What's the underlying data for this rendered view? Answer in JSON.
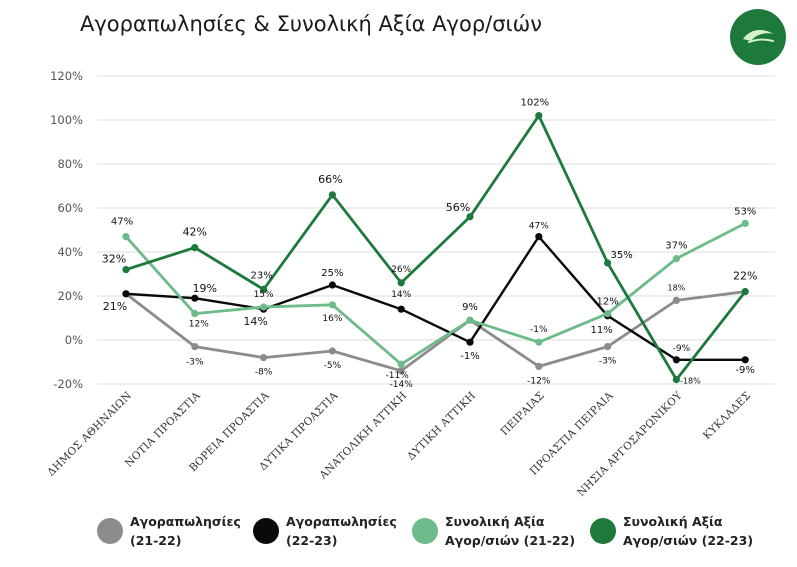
{
  "title": "Αγοραπωλησίες & Συνολική Αξία Αγορ/σιών",
  "logo": {
    "icon": "leaf-logo-icon",
    "color": "#1e7a3c"
  },
  "chart_data": {
    "type": "line",
    "title": "Αγοραπωλησίες & Συνολική Αξία Αγορ/σιών",
    "xlabel": "",
    "ylabel": "",
    "ylim": [
      -20,
      120
    ],
    "yticks": [
      "-20%",
      "0%",
      "20%",
      "40%",
      "60%",
      "80%",
      "100%",
      "120%"
    ],
    "ytick_values": [
      -20,
      0,
      20,
      40,
      60,
      80,
      100,
      120
    ],
    "grid": true,
    "legend_position": "bottom",
    "categories": [
      "ΔΗΜΟΣ ΑΘΗΝΑΙΩΝ",
      "ΝΟΤΙΑ ΠΡΟΑΣΤΙΑ",
      "ΒΟΡΕΙΑ ΠΡΟΑΣΤΙΑ",
      "ΔΥΤΙΚΑ ΠΡΟΑΣΤΙΑ",
      "ΑΝΑΤΟΛΙΚΗ ΑΤΤΙΚΗ",
      "ΔΥΤΙΚΗ ΑΤΤΙΚΗ",
      "ΠΕΙΡΑΙΑΣ",
      "ΠΡΟΑΣΤΙΑ ΠΕΙΡΑΙΑ",
      "ΝΗΣΙΑ ΑΡΓΟΣΑΡΩΝΙΚΟΥ",
      "ΚΥΚΛΑΔΕΣ"
    ],
    "series": [
      {
        "name": "Αγοραπωλησίες (21-22)",
        "legend_lines": [
          "Αγοραπωλησίες",
          "(21-22)"
        ],
        "color": "#8c8c8c",
        "values": [
          21,
          -3,
          -8,
          -5,
          -14,
          9,
          -12,
          -3,
          18,
          22
        ],
        "labels": [
          "",
          "-3%",
          "-8%",
          "-5%",
          "-14%",
          "",
          "-12%",
          "-3%",
          "18%",
          ""
        ]
      },
      {
        "name": "Αγοραπωλησίες (22-23)",
        "legend_lines": [
          "Αγοραπωλησίες",
          "(22-23)"
        ],
        "color": "#0a0a0a",
        "values": [
          21,
          19,
          14,
          25,
          14,
          -1,
          47,
          11,
          -9,
          -9
        ],
        "labels": [
          "21%",
          "19%",
          "14%",
          "25%",
          "14%",
          "-1%",
          "47%",
          "11%",
          "-9%",
          "-9%"
        ]
      },
      {
        "name": "Συνολική Αξία Αγορ/σιών (21-22)",
        "legend_lines": [
          "Συνολική Αξία",
          "Αγορ/σιών (21-22)"
        ],
        "color": "#6dbb8a",
        "values": [
          47,
          12,
          15,
          16,
          -11,
          9,
          -1,
          12,
          37,
          53
        ],
        "labels": [
          "47%",
          "12%",
          "15%",
          "16%",
          "-11%",
          "9%",
          "-1%",
          "12%",
          "37%",
          "53%"
        ]
      },
      {
        "name": "Συνολική Αξία Αγορ/σιών (22-23)",
        "legend_lines": [
          "Συνολική Αξία",
          "Αγορ/σιών (22-23)"
        ],
        "color": "#1e7a3c",
        "values": [
          32,
          42,
          23,
          66,
          26,
          56,
          102,
          35,
          -18,
          22
        ],
        "labels": [
          "32%",
          "42%",
          "23%",
          "66%",
          "26%",
          "56%",
          "102%",
          "35%",
          "-18%",
          "22%"
        ]
      }
    ]
  }
}
